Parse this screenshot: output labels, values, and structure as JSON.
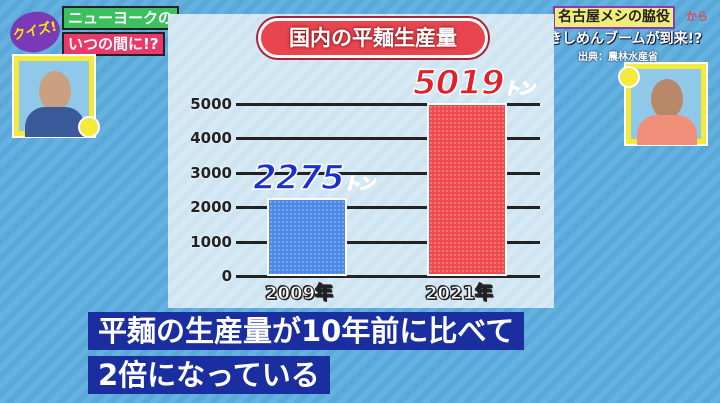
{
  "show": {
    "logo_quiz": "クイズ!",
    "logo_line1": "ニューヨークの",
    "logo_line2": "いつの間に!?"
  },
  "topic": {
    "tag": "名古屋メシの脇役",
    "tag_suffix": "から",
    "subtitle": "きしめんブームが到来!?",
    "source": "出典：農林水産省"
  },
  "chart_data": {
    "type": "bar",
    "title": "国内の平麺生産量",
    "categories": [
      "2009年",
      "2021年"
    ],
    "values": [
      2275,
      5019
    ],
    "data_labels": [
      {
        "num": "2275",
        "unit": "トン"
      },
      {
        "num": "5019",
        "unit": "トン"
      }
    ],
    "ylim": [
      0,
      5000
    ],
    "yticks": [
      "0",
      "1000",
      "2000",
      "3000",
      "4000",
      "5000"
    ],
    "grid": true,
    "colors": [
      "#4a86e8",
      "#f0474a"
    ],
    "label_colors": [
      "#1a2fd0",
      "#e0202a"
    ]
  },
  "caption": {
    "line1": "平麺の生産量が10年前に比べて",
    "line2": "2倍になっている"
  }
}
